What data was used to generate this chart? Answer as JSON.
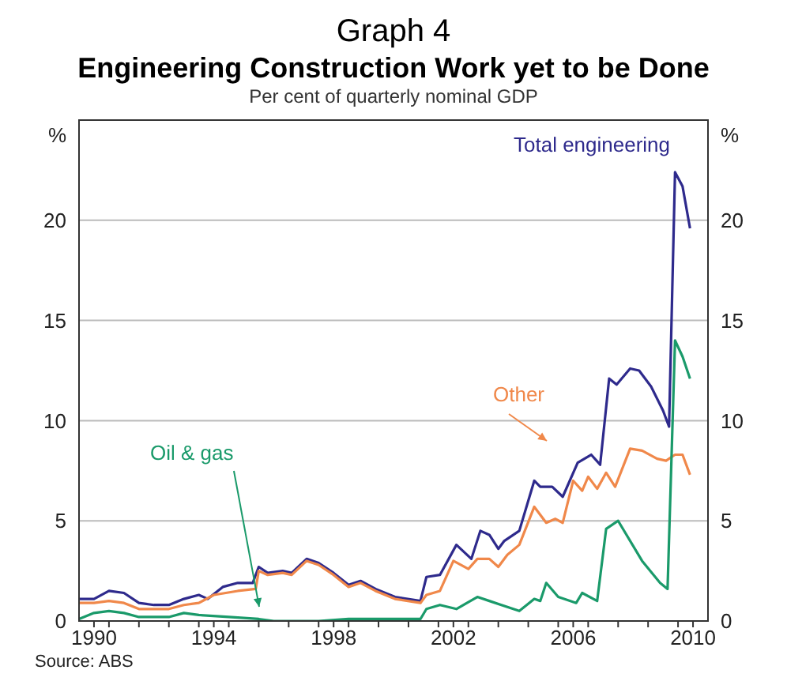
{
  "chart_data": {
    "type": "line",
    "title": "Engineering Construction Work yet to be Done",
    "subtitle": "Per cent of quarterly nominal GDP",
    "annotations": [
      "Graph 4",
      "Source: ABS"
    ],
    "ylabel": "%",
    "y2label": "%",
    "xlim": [
      1990,
      2011
    ],
    "xticks": [
      {
        "value": 1990.5,
        "label": "1990"
      },
      {
        "value": 1991,
        "label": null
      },
      {
        "value": 1992,
        "label": null
      },
      {
        "value": 1993,
        "label": null
      },
      {
        "value": 1994,
        "label": null
      },
      {
        "value": 1994.5,
        "label": "1994"
      },
      {
        "value": 1995,
        "label": null
      },
      {
        "value": 1996,
        "label": null
      },
      {
        "value": 1997,
        "label": null
      },
      {
        "value": 1998,
        "label": null
      },
      {
        "value": 1998.5,
        "label": "1998"
      },
      {
        "value": 1999,
        "label": null
      },
      {
        "value": 2000,
        "label": null
      },
      {
        "value": 2001,
        "label": null
      },
      {
        "value": 2002,
        "label": null
      },
      {
        "value": 2002.5,
        "label": "2002"
      },
      {
        "value": 2003,
        "label": null
      },
      {
        "value": 2004,
        "label": null
      },
      {
        "value": 2005,
        "label": null
      },
      {
        "value": 2006,
        "label": null
      },
      {
        "value": 2006.5,
        "label": "2006"
      },
      {
        "value": 2007,
        "label": null
      },
      {
        "value": 2008,
        "label": null
      },
      {
        "value": 2009,
        "label": null
      },
      {
        "value": 2010,
        "label": null
      },
      {
        "value": 2010.5,
        "label": "2010"
      }
    ],
    "ylim": [
      0,
      25
    ],
    "yticks": [
      0,
      5,
      10,
      15,
      20
    ],
    "y2lim": [
      0,
      25
    ],
    "y2ticks": [
      0,
      5,
      10,
      15,
      20
    ],
    "grid": "y",
    "marker": "none",
    "line_style": "solid",
    "series": [
      {
        "name": "Total engineering",
        "color": "#2e2a8c",
        "x": [
          1990.0,
          1990.5,
          1991.0,
          1991.5,
          1992.0,
          1992.5,
          1993.0,
          1993.5,
          1994.0,
          1994.3,
          1994.8,
          1995.3,
          1995.8,
          1996.0,
          1996.3,
          1996.8,
          1997.1,
          1997.6,
          1998.0,
          1998.5,
          1999.0,
          1999.4,
          1999.9,
          2000.55,
          2001.4,
          2001.6,
          2002.05,
          2002.6,
          2003.1,
          2003.4,
          2003.7,
          2004.0,
          2004.2,
          2004.7,
          2005.2,
          2005.4,
          2005.8,
          2006.15,
          2006.65,
          2007.1,
          2007.4,
          2007.7,
          2007.95,
          2008.4,
          2008.7,
          2009.1,
          2009.5,
          2009.7,
          2009.9,
          2010.15,
          2010.4
        ],
        "values": [
          1.1,
          1.1,
          1.5,
          1.4,
          0.9,
          0.8,
          0.8,
          1.1,
          1.3,
          1.1,
          1.7,
          1.9,
          1.9,
          2.7,
          2.4,
          2.5,
          2.4,
          3.1,
          2.9,
          2.4,
          1.8,
          2.0,
          1.6,
          1.2,
          1.0,
          2.2,
          2.3,
          3.8,
          3.1,
          4.5,
          4.3,
          3.6,
          4.0,
          4.5,
          7.0,
          6.7,
          6.7,
          6.2,
          7.9,
          8.3,
          7.8,
          12.1,
          11.8,
          12.6,
          12.5,
          11.7,
          10.5,
          9.7,
          22.4,
          21.7,
          19.6
        ]
      },
      {
        "name": "Other",
        "color": "#f0884a",
        "x": [
          1990.0,
          1990.5,
          1991.0,
          1991.5,
          1992.0,
          1993.0,
          1993.5,
          1994.0,
          1994.5,
          1995.3,
          1995.9,
          1996.0,
          1996.3,
          1996.8,
          1997.1,
          1997.6,
          1998.0,
          1998.5,
          1999.0,
          1999.4,
          1999.9,
          2000.55,
          2001.4,
          2001.6,
          2002.05,
          2002.5,
          2003.0,
          2003.3,
          2003.7,
          2004.0,
          2004.3,
          2004.7,
          2005.2,
          2005.6,
          2005.9,
          2006.15,
          2006.5,
          2006.8,
          2007.0,
          2007.3,
          2007.6,
          2007.9,
          2008.4,
          2008.8,
          2009.3,
          2009.6,
          2009.9,
          2010.15,
          2010.4
        ],
        "values": [
          0.9,
          0.9,
          1.0,
          0.9,
          0.6,
          0.6,
          0.8,
          0.9,
          1.3,
          1.5,
          1.6,
          2.5,
          2.3,
          2.4,
          2.3,
          3.0,
          2.8,
          2.3,
          1.7,
          1.9,
          1.5,
          1.1,
          0.9,
          1.3,
          1.5,
          3.0,
          2.6,
          3.1,
          3.1,
          2.7,
          3.3,
          3.8,
          5.7,
          4.9,
          5.1,
          4.9,
          7.0,
          6.5,
          7.2,
          6.6,
          7.4,
          6.7,
          8.6,
          8.5,
          8.1,
          8.0,
          8.3,
          8.3,
          7.3
        ]
      },
      {
        "name": "Oil & gas",
        "color": "#1a9a6a",
        "x": [
          1990.0,
          1990.5,
          1991.0,
          1991.5,
          1992.0,
          1993.0,
          1993.5,
          1994.0,
          1995.0,
          1996.0,
          1996.5,
          1998.0,
          1999.0,
          2000.0,
          2001.4,
          2001.6,
          2002.05,
          2002.6,
          2003.3,
          2003.7,
          2004.7,
          2005.2,
          2005.4,
          2005.6,
          2006.0,
          2006.6,
          2006.8,
          2007.3,
          2007.6,
          2008.0,
          2008.8,
          2009.4,
          2009.65,
          2009.9,
          2010.15,
          2010.4
        ],
        "values": [
          0.1,
          0.4,
          0.5,
          0.4,
          0.2,
          0.2,
          0.4,
          0.3,
          0.2,
          0.1,
          0.0,
          0.0,
          0.1,
          0.1,
          0.1,
          0.6,
          0.8,
          0.6,
          1.2,
          1.0,
          0.5,
          1.1,
          1.0,
          1.9,
          1.2,
          0.9,
          1.4,
          1.0,
          4.6,
          5.0,
          3.0,
          1.9,
          1.6,
          14.0,
          13.2,
          12.1
        ]
      }
    ]
  }
}
